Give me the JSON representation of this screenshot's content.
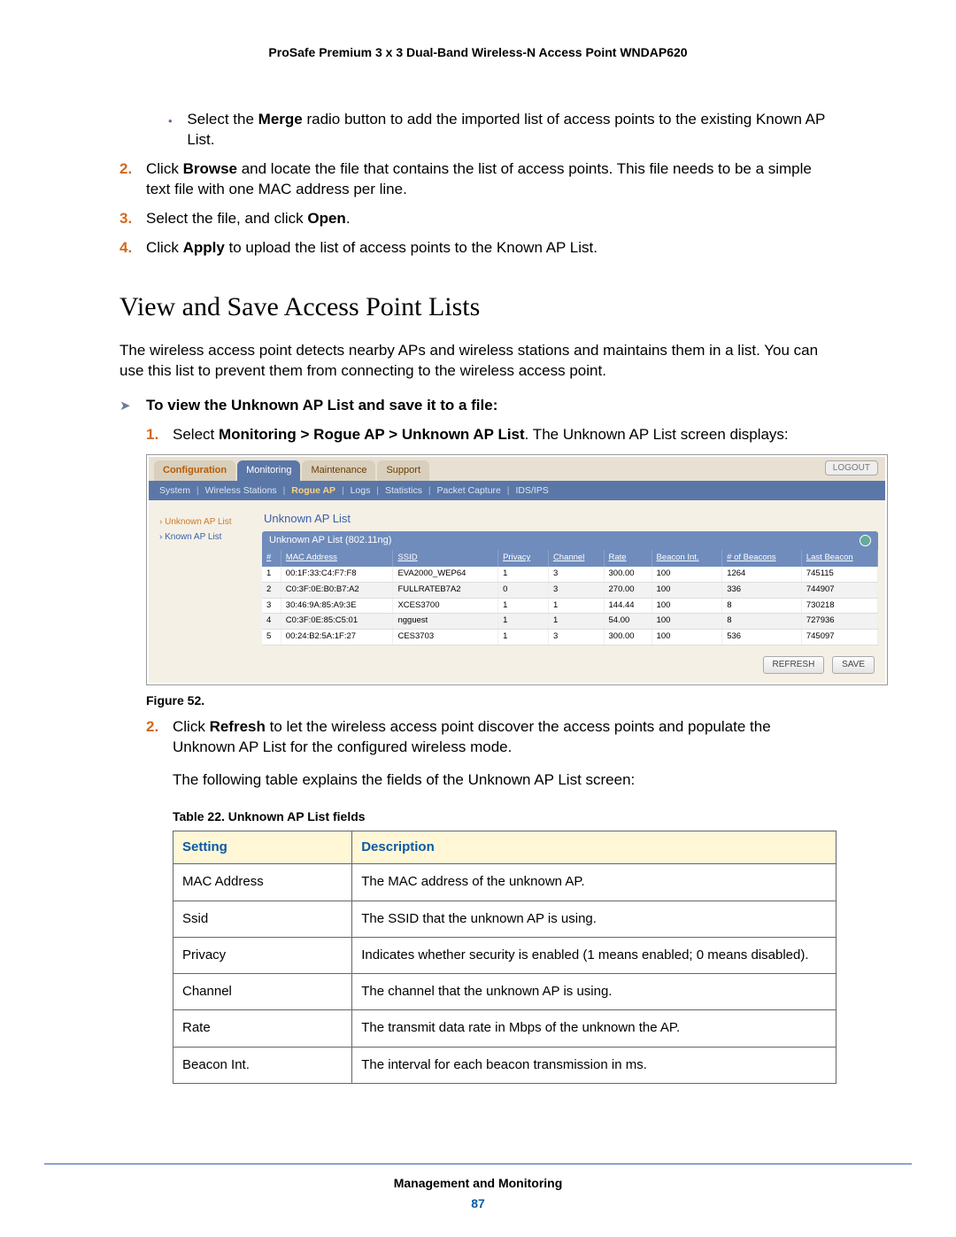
{
  "doc_header": "ProSafe Premium 3 x 3 Dual-Band Wireless-N Access Point WNDAP620",
  "bullet1_pre": "Select the ",
  "bullet1_bold": "Merge",
  "bullet1_post": " radio button to add the imported list of access points to the existing Known AP List.",
  "step2_pre": "Click ",
  "step2_bold": "Browse",
  "step2_post": " and locate the file that contains the list of access points. This file needs to be a simple text file with one MAC address per line.",
  "step3_pre": "Select the file, and click ",
  "step3_bold": "Open",
  "step3_post": ".",
  "step4_pre": "Click ",
  "step4_bold": "Apply",
  "step4_post": " to upload the list of access points to the Known AP List.",
  "section_heading": "View and Save Access Point Lists",
  "section_intro": "The wireless access point detects nearby APs and wireless stations and maintains them in a list. You can use this list to prevent them from connecting to the wireless access point.",
  "proc_heading": "To view the Unknown AP List and save it to a file:",
  "proc1_pre": "Select ",
  "proc1_bold": "Monitoring > Rogue AP > Unknown AP List",
  "proc1_post": ". The Unknown AP List screen displays:",
  "figure_caption": "Figure 52.",
  "proc2_pre": "Click ",
  "proc2_bold": "Refresh",
  "proc2_post": " to let the wireless access point discover the access points and populate the Unknown AP List for the configured wireless mode.",
  "following_para": "The following table explains the fields of the Unknown AP List screen:",
  "table_caption": "Table 22.  Unknown AP List fields",
  "fields_headers": {
    "setting": "Setting",
    "description": "Description"
  },
  "fields_rows": [
    {
      "s": "MAC Address",
      "d": "The MAC address of the unknown AP."
    },
    {
      "s": "Ssid",
      "d": "The SSID that the unknown AP is using."
    },
    {
      "s": "Privacy",
      "d": "Indicates whether security is enabled (1 means enabled; 0 means disabled)."
    },
    {
      "s": "Channel",
      "d": "The channel that the unknown AP is using."
    },
    {
      "s": "Rate",
      "d": "The transmit data rate in Mbps of the unknown the AP."
    },
    {
      "s": "Beacon Int.",
      "d": "The interval for each beacon transmission in ms."
    }
  ],
  "footer_chapter": "Management and Monitoring",
  "footer_page": "87",
  "shot": {
    "top_tabs": [
      "Configuration",
      "Monitoring",
      "Maintenance",
      "Support"
    ],
    "top_tab_selected_index": 1,
    "logout": "LOGOUT",
    "sub_tabs": [
      "System",
      "Wireless Stations",
      "Rogue AP",
      "Logs",
      "Statistics",
      "Packet Capture",
      "IDS/IPS"
    ],
    "sub_tab_active_index": 2,
    "side_items": [
      "Unknown AP List",
      "Known AP List"
    ],
    "side_active_index": 0,
    "panel_title": "Unknown AP List",
    "group_title": "Unknown AP List (802.11ng)",
    "columns": [
      "#",
      "MAC Address",
      "SSID",
      "Privacy",
      "Channel",
      "Rate",
      "Beacon Int.",
      "# of Beacons",
      "Last Beacon"
    ],
    "rows": [
      [
        "1",
        "00:1F:33:C4:F7:F8",
        "EVA2000_WEP64",
        "1",
        "3",
        "300.00",
        "100",
        "1264",
        "745115"
      ],
      [
        "2",
        "C0:3F:0E:B0:B7:A2",
        "FULLRATEB7A2",
        "0",
        "3",
        "270.00",
        "100",
        "336",
        "744907"
      ],
      [
        "3",
        "30:46:9A:85:A9:3E",
        "XCES3700",
        "1",
        "1",
        "144.44",
        "100",
        "8",
        "730218"
      ],
      [
        "4",
        "C0:3F:0E:85:C5:01",
        "ngguest",
        "1",
        "1",
        "54.00",
        "100",
        "8",
        "727936"
      ],
      [
        "5",
        "00:24:B2:5A:1F:27",
        "CES3703",
        "1",
        "3",
        "300.00",
        "100",
        "536",
        "745097"
      ]
    ],
    "buttons": {
      "refresh": "REFRESH",
      "save": "SAVE"
    },
    "colors": {
      "tab_sel_bg": "#5a77a8",
      "subtab_bg": "#5a77a8",
      "panel_bg": "#f5f0e6",
      "th_bg": "#6f8cbd",
      "active_orange": "#cc7a29"
    }
  }
}
